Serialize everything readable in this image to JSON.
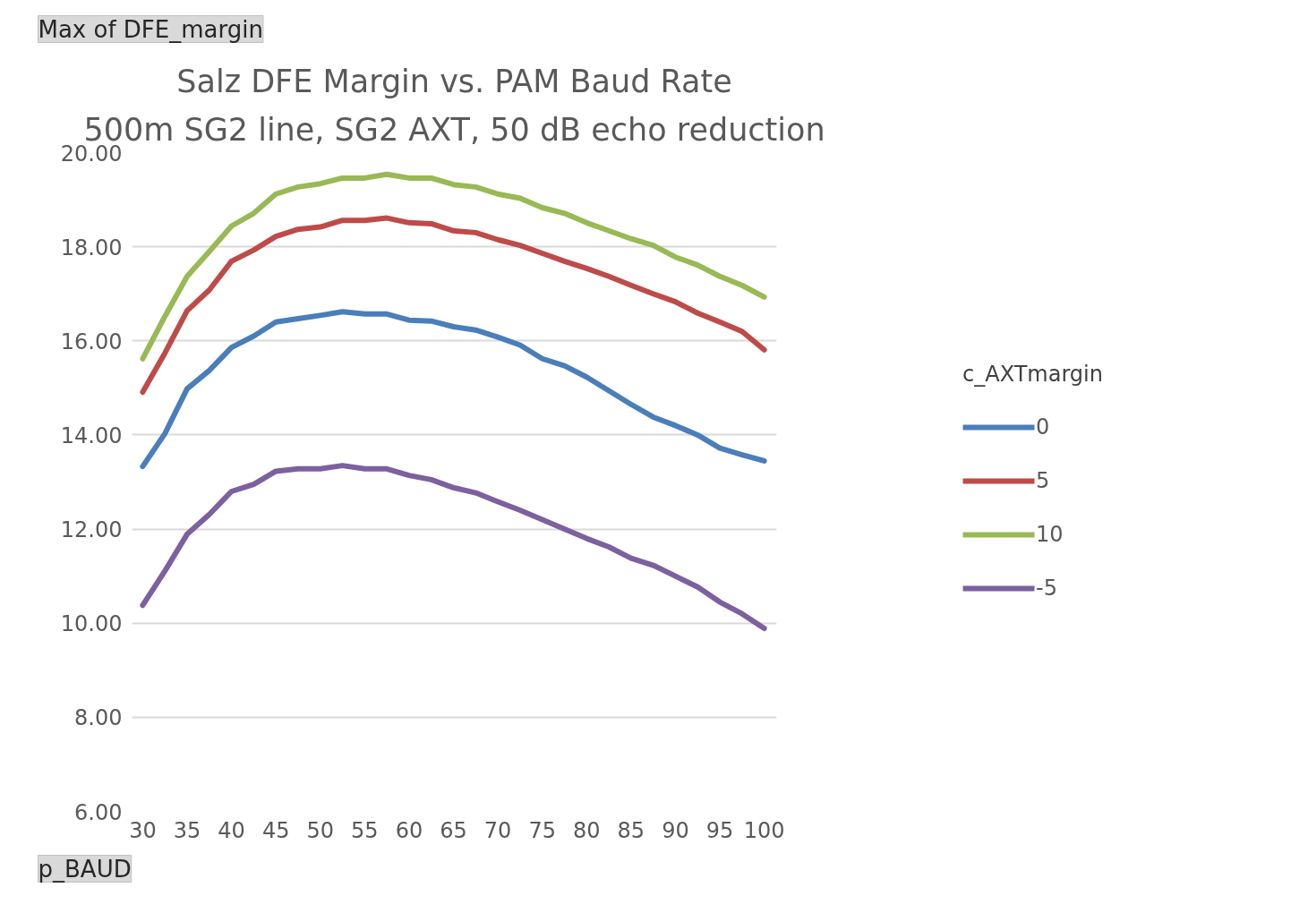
{
  "chart_data": {
    "type": "line",
    "title": "Salz DFE Margin vs. PAM Baud Rate",
    "subtitle": "500m SG2 line, SG2 AXT, 50 dB echo reduction",
    "xlabel": "p_BAUD",
    "legend_title": "c_AXTmargin",
    "annotations": [
      "Max of DFE_margin"
    ],
    "x": [
      30,
      32.5,
      35,
      37.5,
      40,
      42.5,
      45,
      47.5,
      50,
      52.5,
      55,
      57.5,
      60,
      62.5,
      65,
      67.5,
      70,
      72.5,
      75,
      77.5,
      80,
      82.5,
      85,
      87.5,
      90,
      92.5,
      95,
      97.5,
      100
    ],
    "xlim": [
      28.8,
      101.4
    ],
    "xticks": [
      30,
      35,
      40,
      45,
      50,
      55,
      60,
      65,
      70,
      75,
      80,
      85,
      90,
      95,
      100
    ],
    "ylim": [
      6,
      20
    ],
    "yticks": [
      {
        "value": 6,
        "label": "6.00"
      },
      {
        "value": 8,
        "label": "8.00"
      },
      {
        "value": 10,
        "label": "10.00"
      },
      {
        "value": 12,
        "label": "12.00"
      },
      {
        "value": 14,
        "label": "14.00"
      },
      {
        "value": 16,
        "label": "16.00"
      },
      {
        "value": 18,
        "label": "18.00"
      },
      {
        "value": 20,
        "label": "20.00"
      }
    ],
    "grid": "y",
    "legend": "right",
    "marker": "none",
    "line_style": "solid",
    "series": [
      {
        "name": "0",
        "color": "#4a7ebb",
        "values": [
          13.33,
          14.03,
          14.98,
          15.37,
          15.86,
          16.1,
          16.4,
          16.47,
          16.54,
          16.62,
          16.57,
          16.57,
          16.44,
          16.42,
          16.3,
          16.23,
          16.08,
          15.91,
          15.62,
          15.47,
          15.23,
          14.94,
          14.65,
          14.38,
          14.2,
          14.0,
          13.72,
          13.58,
          13.45
        ]
      },
      {
        "name": "5",
        "color": "#be4b48",
        "values": [
          14.91,
          15.74,
          16.64,
          17.08,
          17.69,
          17.93,
          18.22,
          18.37,
          18.42,
          18.56,
          18.56,
          18.61,
          18.51,
          18.49,
          18.34,
          18.3,
          18.15,
          18.03,
          17.86,
          17.69,
          17.54,
          17.37,
          17.18,
          17.0,
          16.83,
          16.59,
          16.4,
          16.2,
          15.81
        ]
      },
      {
        "name": "10",
        "color": "#98b954",
        "values": [
          15.62,
          16.52,
          17.37,
          17.9,
          18.44,
          18.71,
          19.12,
          19.27,
          19.34,
          19.46,
          19.46,
          19.54,
          19.46,
          19.46,
          19.32,
          19.27,
          19.12,
          19.03,
          18.83,
          18.71,
          18.51,
          18.34,
          18.17,
          18.03,
          17.78,
          17.61,
          17.37,
          17.18,
          16.93
        ]
      },
      {
        "name": "-5",
        "color": "#7d60a0",
        "values": [
          10.38,
          11.11,
          11.89,
          12.31,
          12.8,
          12.95,
          13.23,
          13.28,
          13.28,
          13.35,
          13.28,
          13.28,
          13.14,
          13.05,
          12.88,
          12.77,
          12.58,
          12.4,
          12.2,
          12.0,
          11.8,
          11.62,
          11.38,
          11.23,
          11.0,
          10.77,
          10.45,
          10.2,
          9.89
        ]
      }
    ]
  }
}
